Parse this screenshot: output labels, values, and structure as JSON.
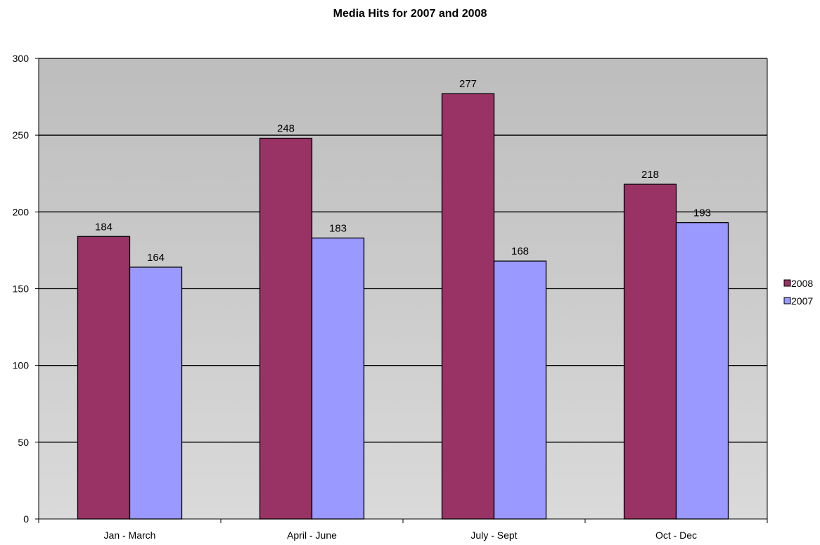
{
  "chart_data": {
    "type": "bar",
    "title": "Media Hits for 2007 and 2008",
    "xlabel": "",
    "ylabel": "",
    "categories": [
      "Jan - March",
      "April - June",
      "July - Sept",
      "Oct - Dec"
    ],
    "series": [
      {
        "name": "2008",
        "values": [
          184,
          248,
          277,
          218
        ],
        "color": "#993366"
      },
      {
        "name": "2007",
        "values": [
          164,
          183,
          168,
          193
        ],
        "color": "#9999ff"
      }
    ],
    "ylim": [
      0,
      300
    ],
    "yticks": [
      0,
      50,
      100,
      150,
      200,
      250,
      300
    ],
    "grid": true,
    "data_labels": true,
    "legend_position": "right",
    "plot_background": "#c0c0c0"
  }
}
